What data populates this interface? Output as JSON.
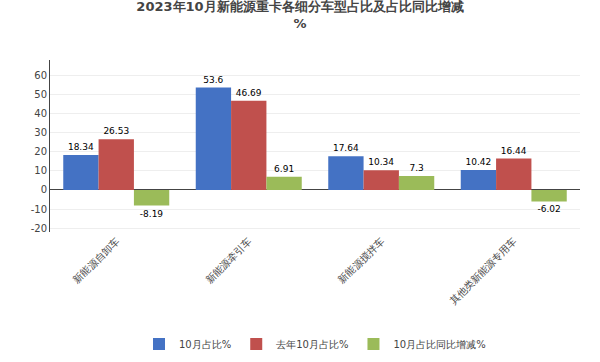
{
  "chart_data": {
    "type": "bar",
    "title": "2023年10月新能源重卡各细分车型占比及占比同比增减",
    "subtitle": "%",
    "categories": [
      "新能源自卸车",
      "新能源牵引车",
      "新能源搅拌车",
      "其他类新能源专用车"
    ],
    "series": [
      {
        "name": "10月占比%",
        "color": "#4472C4",
        "values": [
          18.34,
          53.6,
          17.64,
          10.42
        ]
      },
      {
        "name": "去年10月占比%",
        "color": "#C0504D",
        "values": [
          26.53,
          46.69,
          10.34,
          16.44
        ]
      },
      {
        "name": "10月占比同比增减%",
        "color": "#9BBB59",
        "values": [
          -8.19,
          6.91,
          7.3,
          -6.02
        ]
      }
    ],
    "ylim": [
      -22,
      68
    ],
    "yticks": [
      -20,
      -10,
      0,
      10,
      20,
      30,
      40,
      50,
      60
    ],
    "grid": true,
    "legend": "bottom",
    "data_labels": true
  }
}
